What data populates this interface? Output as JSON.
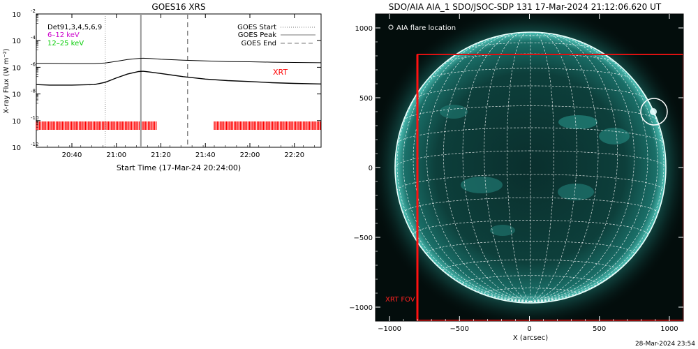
{
  "goes_chart": {
    "title": "GOES16 XRS",
    "ylabel": "X-ray Flux (W m⁻²)",
    "xlabel": "Start Time (17-Mar-24 20:24:00)",
    "y_ticks": [
      {
        "exp": -2,
        "label": "10",
        "sup": "-2"
      },
      {
        "exp": -4,
        "label": "10",
        "sup": "-4"
      },
      {
        "exp": -6,
        "label": "10",
        "sup": "-6"
      },
      {
        "exp": -8,
        "label": "10",
        "sup": "-8"
      },
      {
        "exp": -10,
        "label": "10",
        "sup": "-10"
      },
      {
        "exp": -12,
        "label": "10",
        "sup": "-12"
      }
    ],
    "x_ticks": [
      "20:40",
      "21:00",
      "21:20",
      "21:40",
      "22:00",
      "22:20"
    ],
    "legend_left": [
      {
        "text": "Det91,3,4,5,6,9",
        "color": "#000000"
      },
      {
        "text": "6–12 keV",
        "color": "#cc00cc"
      },
      {
        "text": "12–25 keV",
        "color": "#00cc00"
      }
    ],
    "legend_right": [
      {
        "text": "GOES Start",
        "style": "dotted"
      },
      {
        "text": "GOES Peak",
        "style": "solid"
      },
      {
        "text": "GOES End",
        "style": "dashed"
      }
    ],
    "xrt_label": "XRT",
    "colors": {
      "xrt": "#ff0000",
      "curve": "#000000",
      "marker": "#999999"
    }
  },
  "chart_data": [
    {
      "type": "line",
      "title": "GOES16 XRS",
      "xlabel": "Start Time (17-Mar-24 20:24:00)",
      "ylabel": "X-ray Flux (W m⁻²)",
      "yscale": "log",
      "xlim": [
        "20:24",
        "22:32"
      ],
      "ylim": [
        1e-12,
        0.01
      ],
      "x_unit": "time (UT, 17-Mar-2024)",
      "series": [
        {
          "x": [
            "20:24",
            "20:30",
            "20:40",
            "20:50",
            "20:55",
            "21:00",
            "21:05",
            "21:10",
            "21:12",
            "21:15",
            "21:20",
            "21:30",
            "21:40",
            "21:50",
            "22:00",
            "22:10",
            "22:20",
            "22:32"
          ],
          "y": [
            2e-06,
            2e-06,
            1.9e-06,
            1.9e-06,
            2.1e-06,
            2.8e-06,
            3.8e-06,
            4.6e-06,
            4.8e-06,
            4.6e-06,
            4e-06,
            3.4e-06,
            3e-06,
            2.7e-06,
            2.6e-06,
            2.4e-06,
            2.3e-06,
            2.2e-06
          ]
        },
        {
          "x": [
            "20:24",
            "20:30",
            "20:40",
            "20:50",
            "20:55",
            "21:00",
            "21:05",
            "21:10",
            "21:12",
            "21:15",
            "21:20",
            "21:30",
            "21:40",
            "21:50",
            "22:00",
            "22:10",
            "22:20",
            "22:32"
          ],
          "y": [
            5e-08,
            4.6e-08,
            4.6e-08,
            5e-08,
            7.5e-08,
            1.6e-07,
            3.1e-07,
            4.8e-07,
            5e-07,
            4.4e-07,
            3.4e-07,
            2e-07,
            1.3e-07,
            1e-07,
            8.5e-08,
            7e-08,
            6.2e-08,
            5.6e-08
          ]
        }
      ],
      "goes_start": "20:55",
      "goes_peak": "21:11",
      "goes_end": "21:32",
      "xrt_coverage": [
        [
          "20:24",
          "21:18"
        ],
        [
          "21:44",
          "22:32"
        ]
      ]
    },
    {
      "type": "image",
      "title": "SDO/AIA AIA_1 SDO/JSOC-SDP 131 17-Mar-2024 21:12:06.620 UT",
      "xlabel": "X (arcsec)",
      "xlim": [
        -1100,
        1100
      ],
      "ylim": [
        -1100,
        1100
      ],
      "x_ticks": [
        -1000,
        -500,
        0,
        500,
        1000
      ],
      "y_ticks": [
        -1000,
        -500,
        0,
        500,
        1000
      ],
      "solar_radius_arcsec": 970,
      "flare_location_arcsec": [
        880,
        410
      ],
      "xrt_fov_arcsec": {
        "x": [
          -800,
          1100
        ],
        "y": [
          -1100,
          800
        ]
      }
    }
  ],
  "aia_panel": {
    "title": "SDO/AIA AIA_1 SDO/JSOC-SDP 131 17-Mar-2024 21:12:06.620 UT",
    "xlabel": "X (arcsec)",
    "flare_legend": "AIA flare location",
    "fov_label": "XRT FOV",
    "x_tick_labels": [
      "−1000",
      "−500",
      "0",
      "500",
      "1000"
    ],
    "y_tick_labels": [
      "1000",
      "500",
      "0",
      "−500",
      "−1000"
    ],
    "colors": {
      "sky": "#030d0c",
      "disk": "#0b3b38",
      "limb": "#7fe9df",
      "fov": "#dd1111",
      "grid": "#ffffff"
    }
  },
  "footer": {
    "timestamp": "28-Mar-2024 23:54"
  }
}
